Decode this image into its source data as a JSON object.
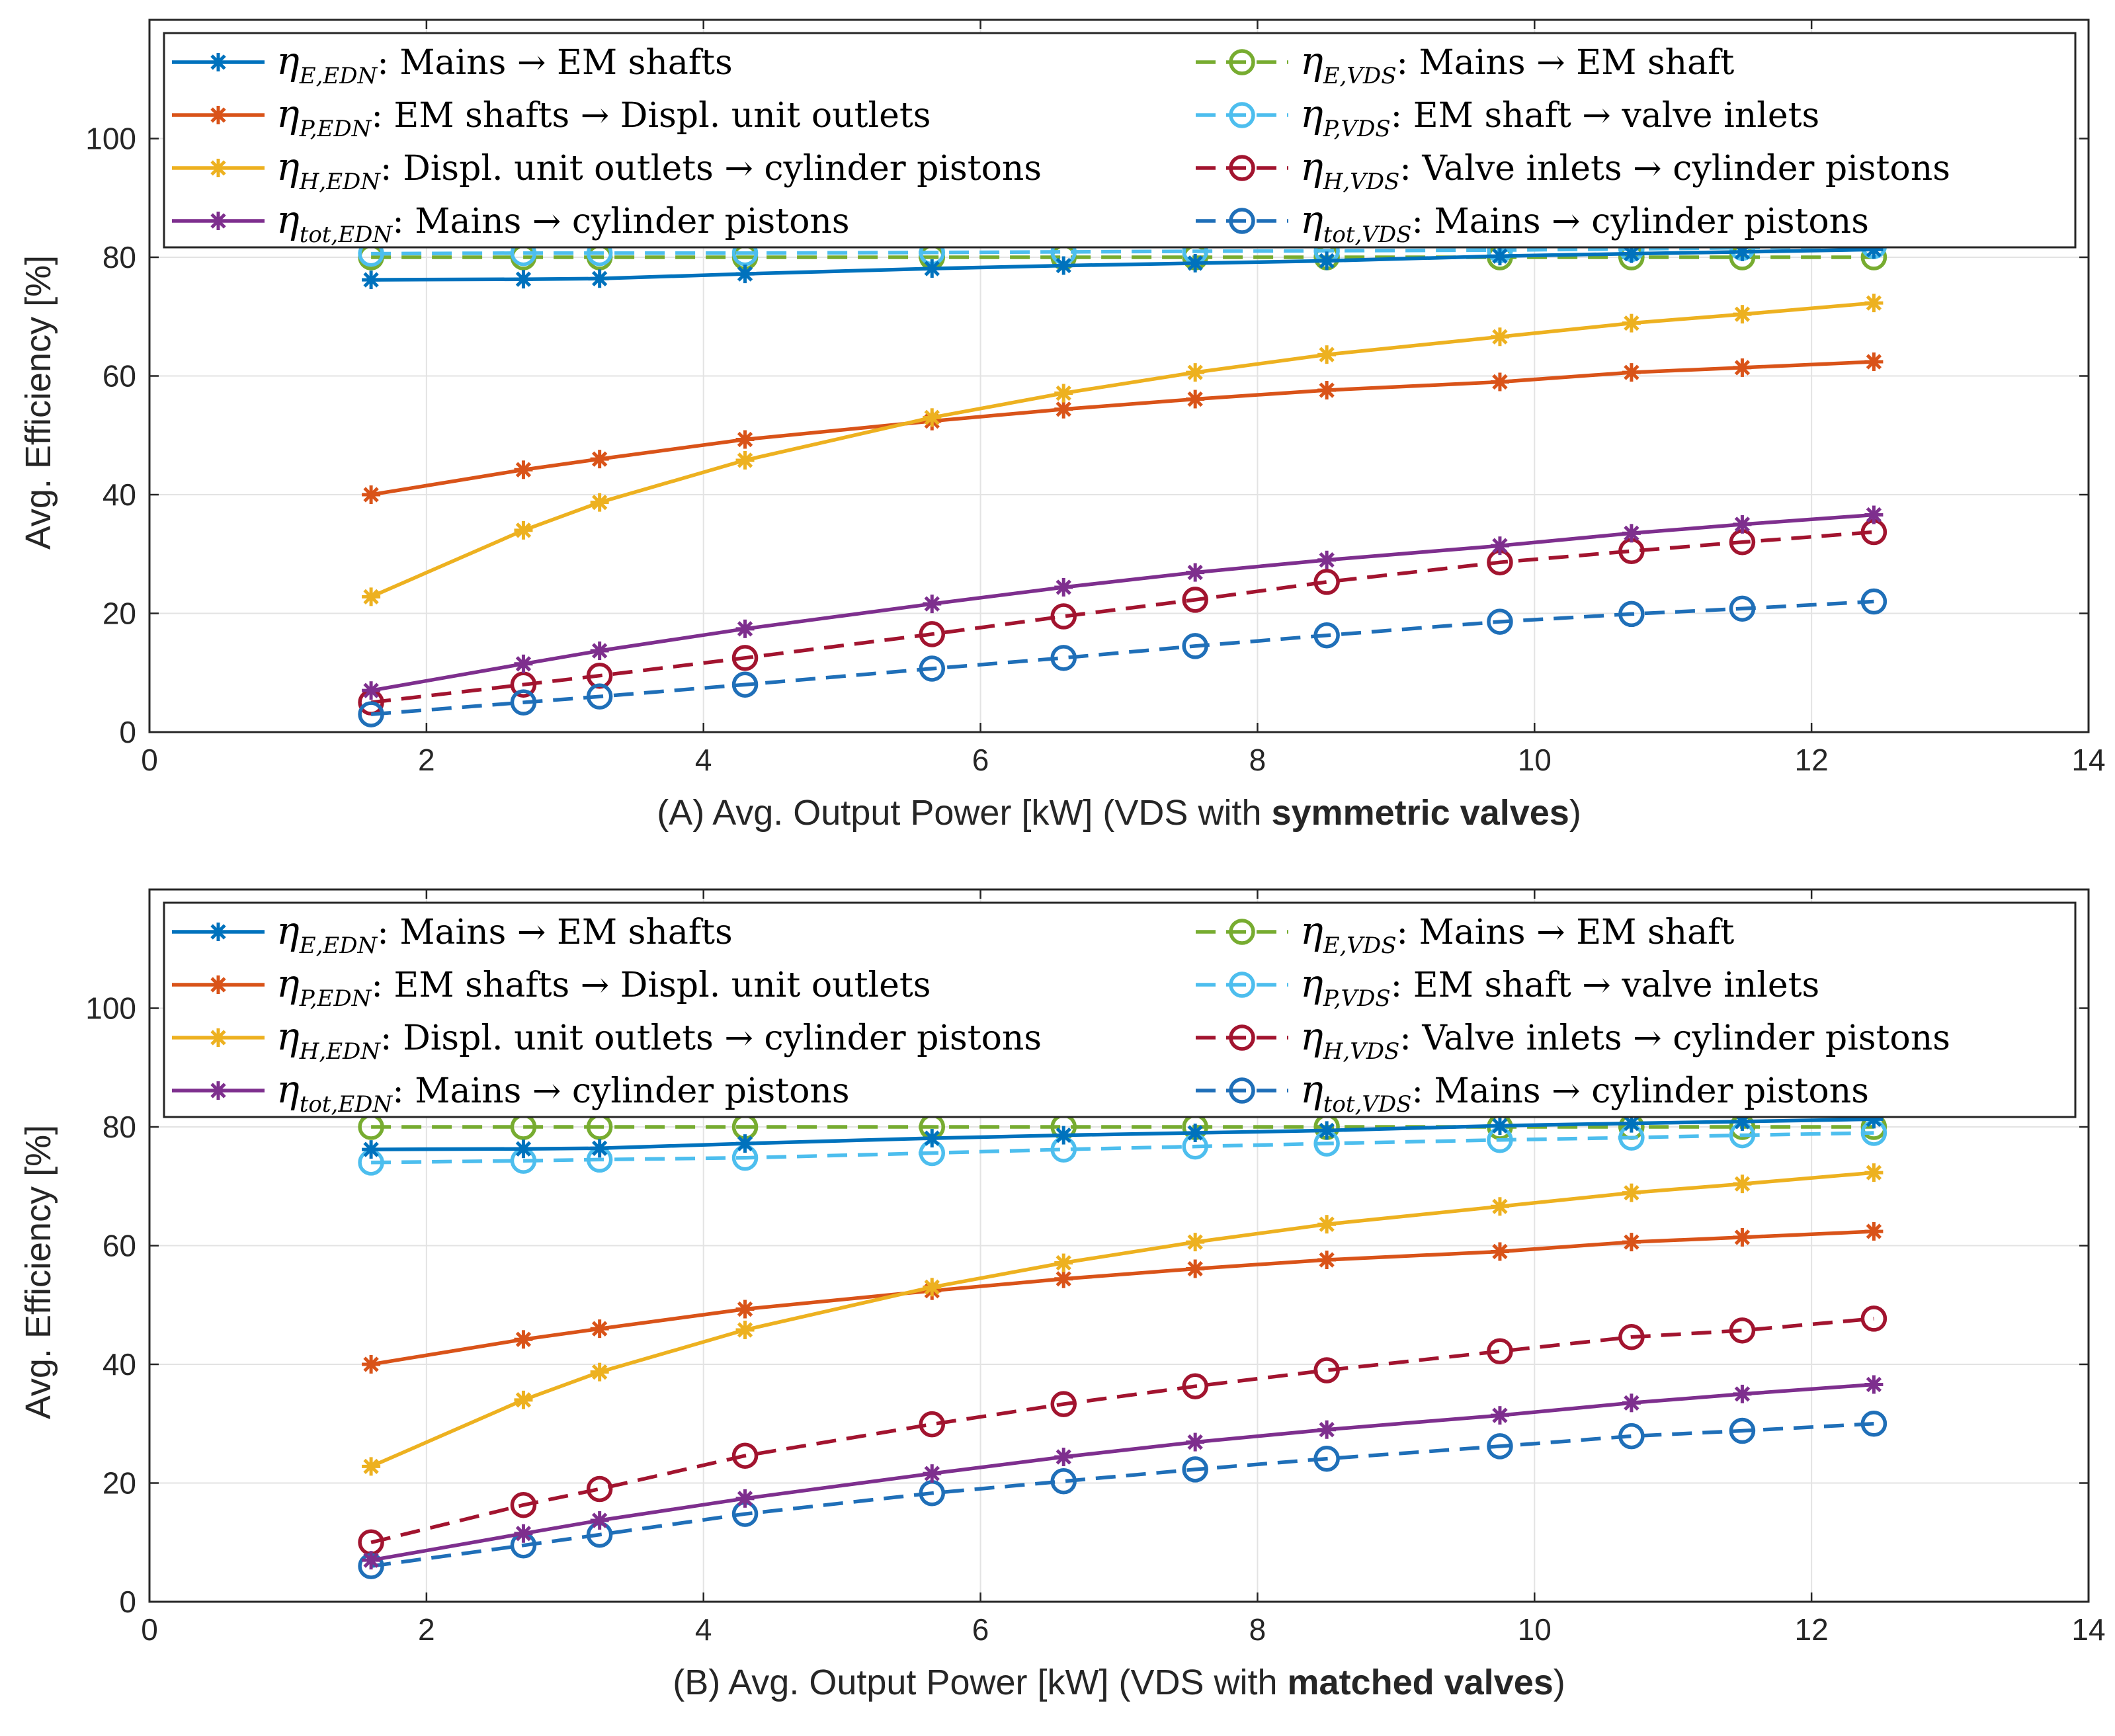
{
  "colors": {
    "eta_E_EDN": "#0072BD",
    "eta_P_EDN": "#D95319",
    "eta_H_EDN": "#EDB120",
    "eta_tot_EDN": "#7E2F8E",
    "eta_E_VDS": "#77AC30",
    "eta_P_VDS": "#4DBEEE",
    "eta_H_VDS": "#A2142F",
    "eta_tot_VDS": "#1F6FB8"
  },
  "chart_data": [
    {
      "type": "line",
      "panel": "A",
      "xlabel_prefix": "(A) Avg. Output Power [kW]   (VDS with ",
      "xlabel_bold": "symmetric valves",
      "xlabel_suffix": ")",
      "ylabel": "Avg. Efficiency [%]",
      "xlim": [
        0,
        14
      ],
      "ylim": [
        0,
        120
      ],
      "xticks": [
        "0",
        "2",
        "4",
        "6",
        "8",
        "10",
        "12",
        "14"
      ],
      "yticks": [
        "0",
        "20",
        "40",
        "60",
        "80",
        "100"
      ],
      "grid": true,
      "legend_position": "top, inside axes",
      "x": [
        1.6,
        2.7,
        3.25,
        4.3,
        5.65,
        6.6,
        7.55,
        8.5,
        9.75,
        10.7,
        11.5,
        12.45
      ],
      "series": [
        {
          "key": "eta_E_EDN",
          "sym": "η",
          "sub": "E,EDN",
          "desc": ": Mains → EM shafts",
          "style": "solid",
          "marker": "asterisk",
          "values": [
            76.2,
            76.3,
            76.4,
            77.2,
            78.1,
            78.6,
            79.0,
            79.4,
            80.2,
            80.6,
            80.9,
            81.3
          ]
        },
        {
          "key": "eta_P_EDN",
          "sym": "η",
          "sub": "P,EDN",
          "desc": ": EM shafts → Displ. unit outlets",
          "style": "solid",
          "marker": "asterisk",
          "values": [
            40.0,
            44.2,
            46.0,
            49.3,
            52.4,
            54.4,
            56.1,
            57.6,
            59.0,
            60.6,
            61.4,
            62.4
          ]
        },
        {
          "key": "eta_H_EDN",
          "sym": "η",
          "sub": "H,EDN",
          "desc": ": Displ. unit outlets → cylinder pistons",
          "style": "solid",
          "marker": "asterisk",
          "values": [
            22.8,
            34.0,
            38.7,
            45.8,
            53.0,
            57.1,
            60.6,
            63.6,
            66.6,
            68.9,
            70.4,
            72.3
          ]
        },
        {
          "key": "eta_tot_EDN",
          "sym": "η",
          "sub": "tot,EDN",
          "desc": ": Mains → cylinder pistons",
          "style": "solid",
          "marker": "asterisk",
          "values": [
            7.0,
            11.5,
            13.7,
            17.4,
            21.6,
            24.4,
            26.9,
            29.0,
            31.4,
            33.5,
            35.0,
            36.6
          ]
        },
        {
          "key": "eta_E_VDS",
          "sym": "η",
          "sub": "E,VDS",
          "desc": ": Mains → EM shaft",
          "style": "dashed",
          "marker": "circle",
          "values": [
            80.0,
            80.0,
            80.0,
            80.0,
            80.0,
            80.0,
            80.0,
            80.0,
            80.0,
            80.0,
            80.0,
            80.0
          ]
        },
        {
          "key": "eta_P_VDS",
          "sym": "η",
          "sub": "P,VDS",
          "desc": ": EM shaft → valve inlets",
          "style": "dashed",
          "marker": "circle",
          "values": [
            80.6,
            80.7,
            80.7,
            80.7,
            80.8,
            80.9,
            81.0,
            81.1,
            81.2,
            81.4,
            81.6,
            81.9
          ]
        },
        {
          "key": "eta_H_VDS",
          "sym": "η",
          "sub": "H,VDS",
          "desc": ": Valve inlets → cylinder pistons",
          "style": "dashed",
          "marker": "circle",
          "values": [
            5.0,
            8.0,
            9.5,
            12.5,
            16.5,
            19.5,
            22.3,
            25.3,
            28.6,
            30.5,
            32.0,
            33.7
          ]
        },
        {
          "key": "eta_tot_VDS",
          "sym": "η",
          "sub": "tot,VDS",
          "desc": ": Mains → cylinder pistons",
          "style": "dashed",
          "marker": "circle",
          "values": [
            3.0,
            5.0,
            6.0,
            8.0,
            10.7,
            12.5,
            14.5,
            16.3,
            18.6,
            19.9,
            20.8,
            22.0
          ]
        }
      ]
    },
    {
      "type": "line",
      "panel": "B",
      "xlabel_prefix": "(B) Avg. Output Power [kW]   (VDS with ",
      "xlabel_bold": "matched valves",
      "xlabel_suffix": ")",
      "ylabel": "Avg. Efficiency [%]",
      "xlim": [
        0,
        14
      ],
      "ylim": [
        0,
        120
      ],
      "xticks": [
        "0",
        "2",
        "4",
        "6",
        "8",
        "10",
        "12",
        "14"
      ],
      "yticks": [
        "0",
        "20",
        "40",
        "60",
        "80",
        "100"
      ],
      "grid": true,
      "legend_position": "top, inside axes",
      "x": [
        1.6,
        2.7,
        3.25,
        4.3,
        5.65,
        6.6,
        7.55,
        8.5,
        9.75,
        10.7,
        11.5,
        12.45
      ],
      "series": [
        {
          "key": "eta_E_EDN",
          "sym": "η",
          "sub": "E,EDN",
          "desc": ": Mains → EM shafts",
          "style": "solid",
          "marker": "asterisk",
          "values": [
            76.2,
            76.3,
            76.4,
            77.2,
            78.1,
            78.6,
            79.0,
            79.4,
            80.2,
            80.6,
            80.9,
            81.3
          ]
        },
        {
          "key": "eta_P_EDN",
          "sym": "η",
          "sub": "P,EDN",
          "desc": ": EM shafts → Displ. unit outlets",
          "style": "solid",
          "marker": "asterisk",
          "values": [
            40.0,
            44.2,
            46.0,
            49.3,
            52.4,
            54.4,
            56.1,
            57.6,
            59.0,
            60.6,
            61.4,
            62.4
          ]
        },
        {
          "key": "eta_H_EDN",
          "sym": "η",
          "sub": "H,EDN",
          "desc": ": Displ. unit outlets → cylinder pistons",
          "style": "solid",
          "marker": "asterisk",
          "values": [
            22.8,
            34.0,
            38.7,
            45.8,
            53.0,
            57.1,
            60.6,
            63.6,
            66.6,
            68.9,
            70.4,
            72.3
          ]
        },
        {
          "key": "eta_tot_EDN",
          "sym": "η",
          "sub": "tot,EDN",
          "desc": ": Mains → cylinder pistons",
          "style": "solid",
          "marker": "asterisk",
          "values": [
            7.0,
            11.5,
            13.7,
            17.4,
            21.6,
            24.4,
            26.9,
            29.0,
            31.4,
            33.5,
            35.0,
            36.6
          ]
        },
        {
          "key": "eta_E_VDS",
          "sym": "η",
          "sub": "E,VDS",
          "desc": ": Mains → EM shaft",
          "style": "dashed",
          "marker": "circle",
          "values": [
            80.0,
            80.0,
            80.0,
            80.0,
            80.0,
            80.0,
            80.0,
            80.0,
            80.0,
            80.0,
            80.0,
            80.0
          ]
        },
        {
          "key": "eta_P_VDS",
          "sym": "η",
          "sub": "P,VDS",
          "desc": ": EM shaft → valve inlets",
          "style": "dashed",
          "marker": "circle",
          "values": [
            74.0,
            74.3,
            74.5,
            74.8,
            75.6,
            76.2,
            76.7,
            77.2,
            77.8,
            78.2,
            78.6,
            79.0
          ]
        },
        {
          "key": "eta_H_VDS",
          "sym": "η",
          "sub": "H,VDS",
          "desc": ": Valve inlets → cylinder pistons",
          "style": "dashed",
          "marker": "circle",
          "values": [
            10.0,
            16.3,
            19.0,
            24.6,
            29.9,
            33.3,
            36.3,
            39.0,
            42.2,
            44.6,
            45.7,
            47.7
          ]
        },
        {
          "key": "eta_tot_VDS",
          "sym": "η",
          "sub": "tot,VDS",
          "desc": ": Mains → cylinder pistons",
          "style": "dashed",
          "marker": "circle",
          "values": [
            6.0,
            9.5,
            11.3,
            14.8,
            18.3,
            20.3,
            22.3,
            24.1,
            26.2,
            27.9,
            28.8,
            30.0
          ]
        }
      ]
    }
  ]
}
